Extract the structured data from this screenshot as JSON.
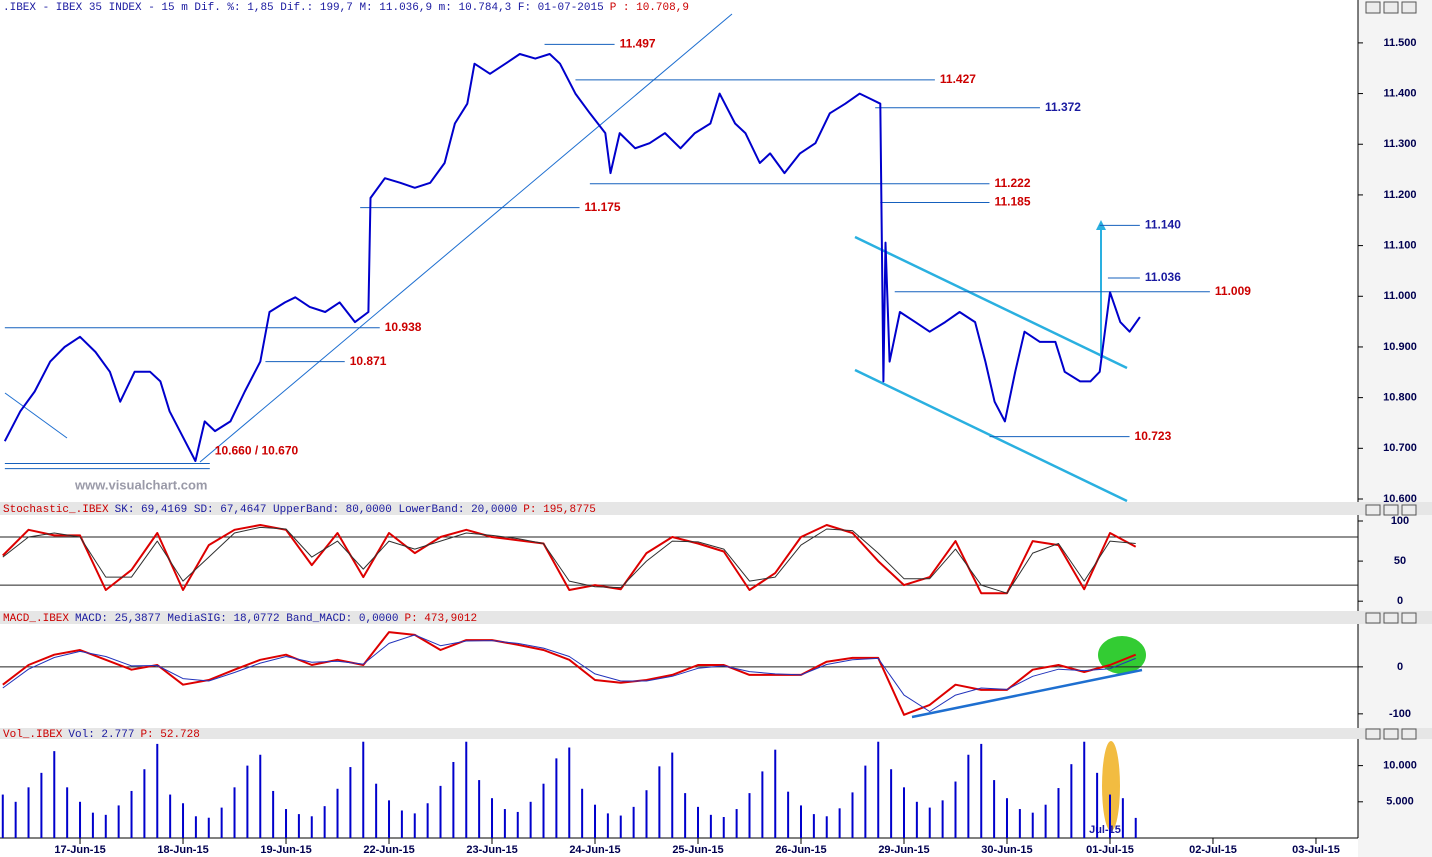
{
  "chart_data": [
    {
      "type": "line",
      "header": ".IBEX - IBEX 35 INDEX -  15 m Dif. %: 1,85 Dif.: 199,7 M: 11.036,9 m: 10.784,3 F: 01-07-2015",
      "header_price": "P : 10.708,9",
      "watermark": "www.visualchart.com",
      "color": "#0000cc",
      "xlim": [
        0.223,
        13.408
      ],
      "ylim": [
        10.598,
        11.557
      ],
      "yticks": [
        {
          "value": 10.6,
          "label": "10.600"
        },
        {
          "value": 10.7,
          "label": "10.700"
        },
        {
          "value": 10.8,
          "label": "10.800"
        },
        {
          "value": 10.9,
          "label": "10.900"
        },
        {
          "value": 11.0,
          "label": "11.000"
        },
        {
          "value": 11.1,
          "label": "11.100"
        },
        {
          "value": 11.2,
          "label": "11.200"
        },
        {
          "value": 11.3,
          "label": "11.300"
        },
        {
          "value": 11.4,
          "label": "11.400"
        },
        {
          "value": 11.5,
          "label": "11.500"
        }
      ],
      "x": [
        0.27,
        0.42,
        0.56,
        0.71,
        0.85,
        1.0,
        1.15,
        1.29,
        1.39,
        1.53,
        1.68,
        1.78,
        1.87,
        2.02,
        2.12,
        2.21,
        2.31,
        2.46,
        2.6,
        2.75,
        2.84,
        2.99,
        3.09,
        3.23,
        3.38,
        3.52,
        3.67,
        3.8,
        3.82,
        3.96,
        4.11,
        4.25,
        4.4,
        4.54,
        4.64,
        4.76,
        4.83,
        4.98,
        5.13,
        5.27,
        5.42,
        5.56,
        5.66,
        5.81,
        5.95,
        6.1,
        6.15,
        6.24,
        6.39,
        6.53,
        6.68,
        6.83,
        6.97,
        7.12,
        7.21,
        7.36,
        7.46,
        7.6,
        7.7,
        7.84,
        7.99,
        8.14,
        8.28,
        8.43,
        8.57,
        8.67,
        8.77,
        8.8,
        8.82,
        8.86,
        8.96,
        9.11,
        9.25,
        9.4,
        9.54,
        9.69,
        9.79,
        9.88,
        9.98,
        10.08,
        10.17,
        10.32,
        10.47,
        10.56,
        10.71,
        10.81,
        10.9,
        11.0,
        11.1,
        11.19,
        11.29
      ],
      "values": [
        10.714,
        10.773,
        10.812,
        10.871,
        10.9,
        10.92,
        10.89,
        10.851,
        10.792,
        10.851,
        10.851,
        10.832,
        10.773,
        10.714,
        10.675,
        10.753,
        10.734,
        10.753,
        10.812,
        10.871,
        10.969,
        10.988,
        10.998,
        10.979,
        10.969,
        10.988,
        10.949,
        10.969,
        11.194,
        11.233,
        11.224,
        11.214,
        11.224,
        11.263,
        11.341,
        11.38,
        11.459,
        11.439,
        11.459,
        11.478,
        11.469,
        11.478,
        11.459,
        11.4,
        11.361,
        11.322,
        11.243,
        11.322,
        11.292,
        11.302,
        11.322,
        11.292,
        11.322,
        11.341,
        11.4,
        11.341,
        11.322,
        11.263,
        11.282,
        11.243,
        11.282,
        11.302,
        11.361,
        11.38,
        11.4,
        11.39,
        11.38,
        10.832,
        11.106,
        10.871,
        10.969,
        10.949,
        10.93,
        10.949,
        10.969,
        10.949,
        10.871,
        10.792,
        10.753,
        10.851,
        10.93,
        10.91,
        10.91,
        10.851,
        10.832,
        10.832,
        10.851,
        11.008,
        10.949,
        10.93,
        10.959
      ],
      "level_color": "#1560bd",
      "levels": [
        {
          "label": "11.497",
          "value": 11.497,
          "x": [
            5.51,
            6.19
          ],
          "color": "#cc0000"
        },
        {
          "label": "11.427",
          "value": 11.427,
          "x": [
            5.81,
            9.3
          ],
          "color": "#cc0000"
        },
        {
          "label": "11.372",
          "value": 11.372,
          "x": [
            8.72,
            10.32
          ],
          "color": "#1a1aa0"
        },
        {
          "label": "11.222",
          "value": 11.222,
          "x": [
            5.95,
            9.83
          ],
          "color": "#cc0000"
        },
        {
          "label": "11.185",
          "value": 11.185,
          "x": [
            8.77,
            9.83
          ],
          "color": "#cc0000"
        },
        {
          "label": "11.175",
          "value": 11.175,
          "x": [
            3.72,
            5.85
          ],
          "color": "#cc0000"
        },
        {
          "label": "11.140",
          "value": 11.14,
          "x": [
            10.9,
            11.29
          ],
          "color": "#1a1aa0"
        },
        {
          "label": "11.036",
          "value": 11.036,
          "x": [
            10.98,
            11.29
          ],
          "color": "#1a1aa0"
        },
        {
          "label": "11.009",
          "value": 11.009,
          "x": [
            8.91,
            11.97
          ],
          "color": "#cc0000"
        },
        {
          "label": "10.938",
          "value": 10.938,
          "x": [
            0.27,
            3.91
          ],
          "color": "#cc0000"
        },
        {
          "label": "10.871",
          "value": 10.871,
          "x": [
            2.8,
            3.57
          ],
          "color": "#cc0000"
        },
        {
          "label": "10.660 / 10.670",
          "values": [
            10.66,
            10.67
          ],
          "x": [
            0.27,
            2.26
          ],
          "color": "#cc0000"
        },
        {
          "label": "10.723",
          "value": 10.723,
          "x": [
            9.83,
            11.19
          ],
          "color": "#cc0000"
        }
      ]
    },
    {
      "type": "line",
      "name": "Stochastic_.IBEX",
      "header": "SK: 69,4169 SD: 67,4647 UpperBand: 80,0000 LowerBand: 20,0000",
      "header_price": "P: 195,8775",
      "xlim": [
        0.223,
        13.408
      ],
      "ylim": [
        -11,
        105
      ],
      "yticks": [
        0,
        50,
        100
      ],
      "bands": [
        80,
        20
      ],
      "x": [
        0.25,
        0.5,
        0.75,
        1.0,
        1.25,
        1.5,
        1.75,
        2.0,
        2.25,
        2.5,
        2.75,
        3.0,
        3.25,
        3.5,
        3.75,
        4.0,
        4.25,
        4.5,
        4.75,
        5.0,
        5.25,
        5.5,
        5.75,
        6.0,
        6.25,
        6.5,
        6.75,
        7.0,
        7.25,
        7.5,
        7.75,
        8.0,
        8.25,
        8.5,
        8.75,
        9.0,
        9.25,
        9.5,
        9.75,
        10.0,
        10.25,
        10.5,
        10.75,
        11.0,
        11.25
      ],
      "series": [
        {
          "color": "#dd0000",
          "values": [
            57,
            89,
            82,
            82,
            14,
            39,
            85,
            14,
            70,
            89,
            95,
            89,
            45,
            85,
            30,
            85,
            60,
            80,
            89,
            80,
            76,
            72,
            14,
            20,
            15,
            60,
            80,
            72,
            62,
            14,
            35,
            80,
            95,
            85,
            50,
            20,
            30,
            75,
            10,
            10,
            75,
            70,
            15,
            85,
            68
          ]
        },
        {
          "color": "#303030",
          "values": [
            55,
            80,
            85,
            80,
            30,
            30,
            75,
            25,
            55,
            85,
            92,
            90,
            55,
            75,
            40,
            75,
            65,
            75,
            85,
            82,
            78,
            72,
            25,
            18,
            17,
            50,
            75,
            74,
            65,
            25,
            30,
            70,
            90,
            88,
            60,
            28,
            28,
            65,
            20,
            10,
            60,
            72,
            25,
            75,
            72
          ]
        }
      ]
    },
    {
      "type": "line",
      "name": "MACD_.IBEX",
      "header": "MACD: 25,3877 MediaSIG: 18,0772 Band_MACD: 0,0000",
      "header_price": "P: 473,9012",
      "xlim": [
        0.223,
        13.408
      ],
      "ylim": [
        -128,
        87
      ],
      "yticks": [
        -100,
        0
      ],
      "bands": [
        0
      ],
      "x": [
        0.25,
        0.5,
        0.75,
        1.0,
        1.25,
        1.5,
        1.75,
        2.0,
        2.25,
        2.5,
        2.75,
        3.0,
        3.25,
        3.5,
        3.75,
        4.0,
        4.25,
        4.5,
        4.75,
        5.0,
        5.25,
        5.5,
        5.75,
        6.0,
        6.25,
        6.5,
        6.75,
        7.0,
        7.25,
        7.5,
        7.75,
        8.0,
        8.25,
        8.5,
        8.75,
        9.0,
        9.25,
        9.5,
        9.75,
        10.0,
        10.25,
        10.5,
        10.75,
        11.0,
        11.25
      ],
      "series": [
        {
          "color": "#dd0000",
          "values": [
            -38,
            4,
            26,
            36,
            15,
            -6,
            4,
            -38,
            -28,
            -6,
            15,
            26,
            4,
            15,
            4,
            74,
            68,
            36,
            57,
            57,
            47,
            36,
            15,
            -28,
            -34,
            -28,
            -17,
            4,
            4,
            -17,
            -17,
            -17,
            11,
            19,
            19,
            -102,
            -81,
            -38,
            -49,
            -49,
            -6,
            4,
            -11,
            4,
            26
          ]
        },
        {
          "color": "#2233bb",
          "values": [
            -45,
            -5,
            20,
            33,
            22,
            2,
            3,
            -25,
            -30,
            -12,
            8,
            22,
            10,
            12,
            6,
            50,
            68,
            45,
            55,
            56,
            50,
            40,
            22,
            -15,
            -30,
            -30,
            -20,
            -3,
            2,
            -10,
            -15,
            -17,
            5,
            15,
            18,
            -60,
            -95,
            -60,
            -45,
            -48,
            -20,
            -5,
            -8,
            -4,
            18
          ]
        }
      ]
    },
    {
      "type": "bar",
      "name": "Vol_.IBEX",
      "header": "Vol: 2.777",
      "header_price": "P: 52.728",
      "annotation": "Jul-15",
      "color": "#0000cc",
      "xlim": [
        0.223,
        13.408
      ],
      "ylim": [
        0,
        13400
      ],
      "yticks": [
        {
          "value": 5000,
          "label": "5.000"
        },
        {
          "value": 10000,
          "label": "10.000"
        }
      ],
      "xticks": [
        {
          "value": 1,
          "label": "17-Jun-15"
        },
        {
          "value": 2,
          "label": "18-Jun-15"
        },
        {
          "value": 3,
          "label": "19-Jun-15"
        },
        {
          "value": 4,
          "label": "22-Jun-15"
        },
        {
          "value": 5,
          "label": "23-Jun-15"
        },
        {
          "value": 6,
          "label": "24-Jun-15"
        },
        {
          "value": 7,
          "label": "25-Jun-15"
        },
        {
          "value": 8,
          "label": "26-Jun-15"
        },
        {
          "value": 9,
          "label": "29-Jun-15"
        },
        {
          "value": 10,
          "label": "30-Jun-15"
        },
        {
          "value": 11,
          "label": "01-Jul-15"
        },
        {
          "value": 12,
          "label": "02-Jul-15"
        },
        {
          "value": 13,
          "label": "03-Jul-15"
        }
      ],
      "x": [
        0.25,
        0.375,
        0.5,
        0.625,
        0.75,
        0.875,
        1.0,
        1.125,
        1.25,
        1.375,
        1.5,
        1.625,
        1.75,
        1.875,
        2.0,
        2.125,
        2.25,
        2.375,
        2.5,
        2.625,
        2.75,
        2.875,
        3.0,
        3.125,
        3.25,
        3.375,
        3.5,
        3.625,
        3.75,
        3.875,
        4.0,
        4.125,
        4.25,
        4.375,
        4.5,
        4.625,
        4.75,
        4.875,
        5.0,
        5.125,
        5.25,
        5.375,
        5.5,
        5.625,
        5.75,
        5.875,
        6.0,
        6.125,
        6.25,
        6.375,
        6.5,
        6.625,
        6.75,
        6.875,
        7.0,
        7.125,
        7.25,
        7.375,
        7.5,
        7.625,
        7.75,
        7.875,
        8.0,
        8.125,
        8.25,
        8.375,
        8.5,
        8.625,
        8.75,
        8.875,
        9.0,
        9.125,
        9.25,
        9.375,
        9.5,
        9.625,
        9.75,
        9.875,
        10.0,
        10.125,
        10.25,
        10.375,
        10.5,
        10.625,
        10.75,
        10.875,
        11.0,
        11.125,
        11.25
      ],
      "values": [
        6000,
        5000,
        7000,
        9000,
        12000,
        7000,
        5000,
        3500,
        3200,
        4500,
        6500,
        9500,
        13000,
        6000,
        4800,
        3000,
        2800,
        4200,
        7000,
        10000,
        11500,
        6500,
        4000,
        3300,
        3000,
        4400,
        6800,
        9800,
        13300,
        7500,
        5200,
        3800,
        3400,
        4800,
        7200,
        10500,
        13300,
        8000,
        5500,
        4000,
        3600,
        5000,
        7500,
        11000,
        12500,
        6800,
        4600,
        3400,
        3100,
        4300,
        6600,
        9900,
        11800,
        6200,
        4300,
        3200,
        2900,
        4000,
        6200,
        9200,
        12200,
        6400,
        4500,
        3300,
        3000,
        4100,
        6300,
        10000,
        13300,
        9500,
        7000,
        5000,
        4200,
        5200,
        7800,
        11500,
        13000,
        8000,
        5500,
        4000,
        3500,
        4600,
        6900,
        10200,
        13300,
        9000,
        6000,
        5500,
        2777
      ]
    }
  ]
}
